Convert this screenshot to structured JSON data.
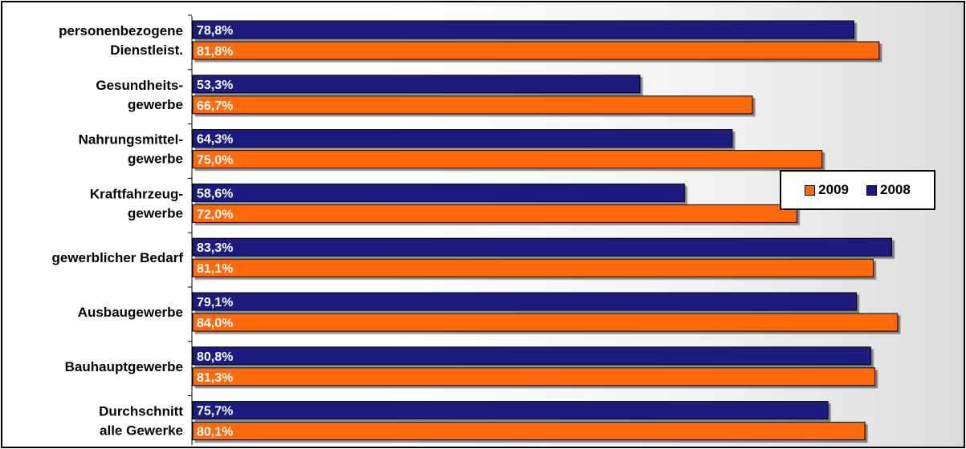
{
  "chart_data": {
    "type": "bar",
    "orientation": "horizontal",
    "categories": [
      [
        "personenbezogene",
        "Dienstleist."
      ],
      [
        "Gesundheits-",
        "gewerbe"
      ],
      [
        "Nahrungsmittel-",
        "gewerbe"
      ],
      [
        "Kraftfahrzeug-",
        "gewerbe"
      ],
      [
        "gewerblicher Bedarf"
      ],
      [
        "Ausbaugewerbe"
      ],
      [
        "Bauhauptgewerbe"
      ],
      [
        "Durchschnitt",
        "alle Gewerke"
      ]
    ],
    "series": [
      {
        "name": "2008",
        "color": "#1a1a80",
        "values": [
          78.8,
          53.3,
          64.3,
          58.6,
          83.3,
          79.1,
          80.8,
          75.7
        ],
        "labels": [
          "78,8%",
          "53,3%",
          "64,3%",
          "58,6%",
          "83,3%",
          "79,1%",
          "80,8%",
          "75,7%"
        ]
      },
      {
        "name": "2009",
        "color": "#ff6a0f",
        "values": [
          81.8,
          66.7,
          75.0,
          72.0,
          81.1,
          84.0,
          81.3,
          80.1
        ],
        "labels": [
          "81,8%",
          "66,7%",
          "75,0%",
          "72,0%",
          "81,1%",
          "84,0%",
          "81,3%",
          "80,1%"
        ]
      }
    ],
    "xlim": [
      0,
      100
    ],
    "grid": false,
    "legend": {
      "position": "right",
      "order": [
        "2009",
        "2008"
      ]
    }
  }
}
